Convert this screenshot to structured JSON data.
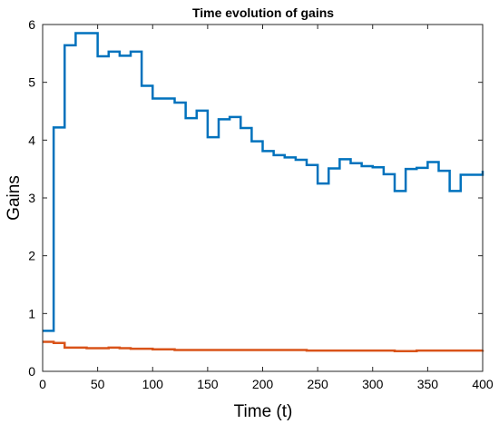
{
  "chart_data": {
    "type": "line",
    "title": "Time evolution of gains",
    "xlabel": "Time (t)",
    "ylabel": "Gains",
    "xlim": [
      0,
      400
    ],
    "ylim": [
      0,
      6
    ],
    "xticks": [
      0,
      50,
      100,
      150,
      200,
      250,
      300,
      350,
      400
    ],
    "yticks": [
      0,
      1,
      2,
      3,
      4,
      5,
      6
    ],
    "grid": false,
    "step": true,
    "series": [
      {
        "color": "#0072BD",
        "x": [
          0,
          10,
          20,
          30,
          50,
          60,
          70,
          80,
          90,
          100,
          110,
          120,
          130,
          140,
          150,
          160,
          170,
          180,
          190,
          200,
          210,
          220,
          230,
          240,
          250,
          260,
          270,
          280,
          290,
          300,
          310,
          320,
          330,
          340,
          350,
          360,
          370,
          380,
          390,
          400
        ],
        "y": [
          0.7,
          4.22,
          5.64,
          5.85,
          5.45,
          5.53,
          5.46,
          5.53,
          4.94,
          4.72,
          4.72,
          4.65,
          4.38,
          4.51,
          4.05,
          4.36,
          4.4,
          4.21,
          3.98,
          3.81,
          3.74,
          3.7,
          3.66,
          3.57,
          3.25,
          3.51,
          3.67,
          3.6,
          3.55,
          3.53,
          3.41,
          3.12,
          3.5,
          3.52,
          3.62,
          3.47,
          3.12,
          3.4,
          3.4,
          3.47
        ]
      },
      {
        "color": "#D95319",
        "x": [
          0,
          10,
          20,
          30,
          40,
          50,
          60,
          70,
          80,
          90,
          100,
          120,
          140,
          160,
          180,
          200,
          220,
          240,
          260,
          280,
          300,
          320,
          340,
          360,
          380,
          400
        ],
        "y": [
          0.51,
          0.49,
          0.41,
          0.41,
          0.4,
          0.4,
          0.41,
          0.4,
          0.39,
          0.39,
          0.38,
          0.37,
          0.37,
          0.37,
          0.37,
          0.37,
          0.37,
          0.36,
          0.36,
          0.36,
          0.36,
          0.35,
          0.36,
          0.36,
          0.36,
          0.37
        ]
      }
    ]
  }
}
